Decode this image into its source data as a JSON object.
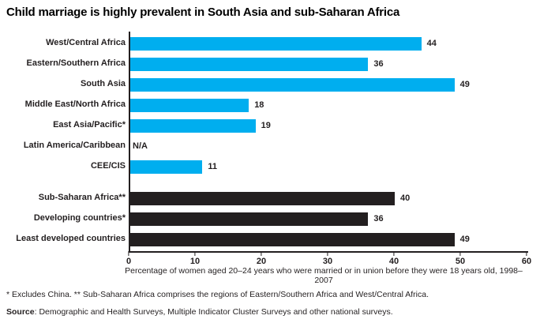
{
  "title": "Child marriage is highly prevalent in South Asia and sub-Saharan Africa",
  "colors": {
    "region_bar": "#00aeef",
    "aggregate_bar": "#231f20",
    "axis": "#231f20"
  },
  "chart_data": {
    "type": "bar",
    "orientation": "horizontal",
    "title": "Child marriage is highly prevalent in South Asia and sub-Saharan Africa",
    "categories": [
      "West/Central Africa",
      "Eastern/Southern Africa",
      "South Asia",
      "Middle East/North Africa",
      "East Asia/Pacific*",
      "Latin America/Caribbean",
      "CEE/CIS",
      "Sub-Saharan Africa**",
      "Developing countries*",
      "Least developed countries"
    ],
    "values": [
      44,
      36,
      49,
      18,
      19,
      null,
      11,
      40,
      36,
      49
    ],
    "value_labels": [
      "44",
      "36",
      "49",
      "18",
      "19",
      "N/A",
      "11",
      "40",
      "36",
      "49"
    ],
    "groups": [
      "region",
      "region",
      "region",
      "region",
      "region",
      "region",
      "region",
      "aggregate",
      "aggregate",
      "aggregate"
    ],
    "xlabel": "Percentage of women aged 20–24 years who were married or in union before they were 18 years old, 1998–2007",
    "xlim": [
      0,
      60
    ],
    "xticks": [
      0,
      10,
      20,
      30,
      40,
      50,
      60
    ],
    "grid": false,
    "legend": false
  },
  "footnotes": {
    "notes": "* Excludes China. ** Sub-Saharan Africa comprises the regions of Eastern/Southern Africa and West/Central Africa.",
    "source_label": "Source",
    "source_text": ": Demographic and Health Surveys, Multiple Indicator Cluster Surveys and other national surveys."
  }
}
